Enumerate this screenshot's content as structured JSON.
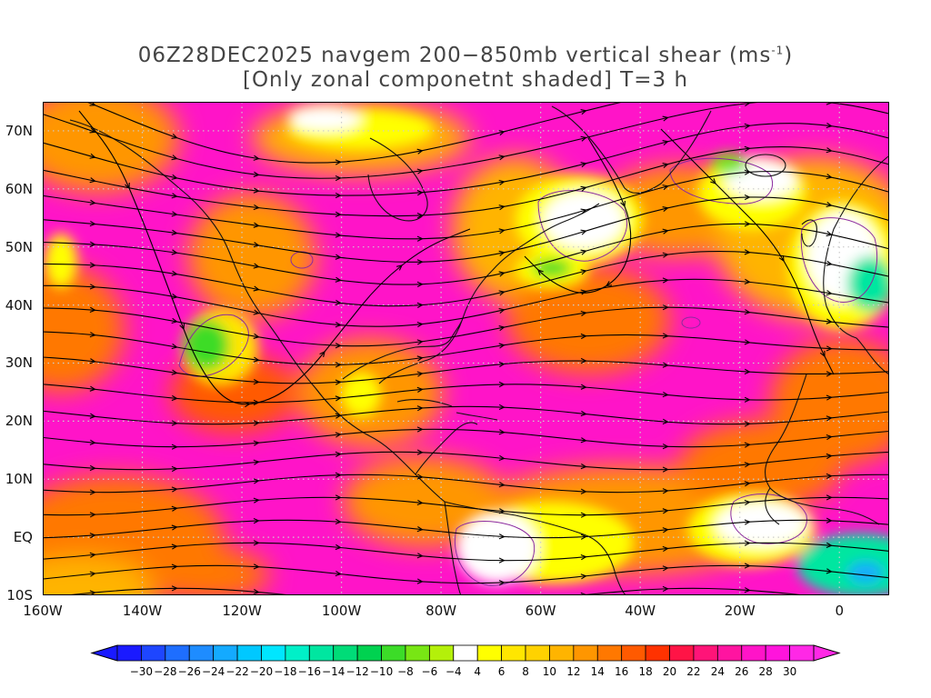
{
  "title": {
    "line1_prefix": "06Z28DEC2025 navgem 200−850mb vertical shear (ms",
    "line1_sup": "-1",
    "line1_suffix": ")",
    "line2": "[Only zonal componetnt shaded] T=3 h"
  },
  "map": {
    "projection": "cylindrical equidistant",
    "lon_range": [
      -160,
      10
    ],
    "lat_range": [
      -10,
      75
    ],
    "gridlines": "dotted",
    "lat_labels": [
      "70N",
      "60N",
      "50N",
      "40N",
      "30N",
      "20N",
      "10N",
      "EQ",
      "10S"
    ],
    "lon_labels": [
      "160W",
      "140W",
      "120W",
      "100W",
      "80W",
      "60W",
      "40W",
      "20W",
      "0"
    ],
    "overlay": "streamlines of shear vector",
    "contour_color": "#8b2a9f"
  },
  "colorbar": {
    "labels": [
      "-30",
      "-28",
      "-26",
      "-24",
      "-22",
      "-20",
      "-18",
      "-16",
      "-14",
      "-12",
      "-10",
      "-8",
      "-6",
      "-4",
      "4",
      "6",
      "8",
      "10",
      "12",
      "14",
      "16",
      "18",
      "20",
      "22",
      "24",
      "26",
      "28",
      "30"
    ],
    "colors": [
      "#1a1aff",
      "#1e46ff",
      "#1e6eff",
      "#1e8cff",
      "#14aaff",
      "#00c8ff",
      "#00e6ff",
      "#00f0c8",
      "#00e6a0",
      "#00dc78",
      "#00d250",
      "#3cdc28",
      "#78e614",
      "#b4f00a",
      "#ffffff",
      "#ffff00",
      "#ffe600",
      "#ffd200",
      "#ffb400",
      "#ff9600",
      "#ff7800",
      "#ff5a00",
      "#ff3200",
      "#ff1446",
      "#ff1478",
      "#ff14a0",
      "#ff14c8",
      "#ff14dc",
      "#ff28e6"
    ]
  }
}
